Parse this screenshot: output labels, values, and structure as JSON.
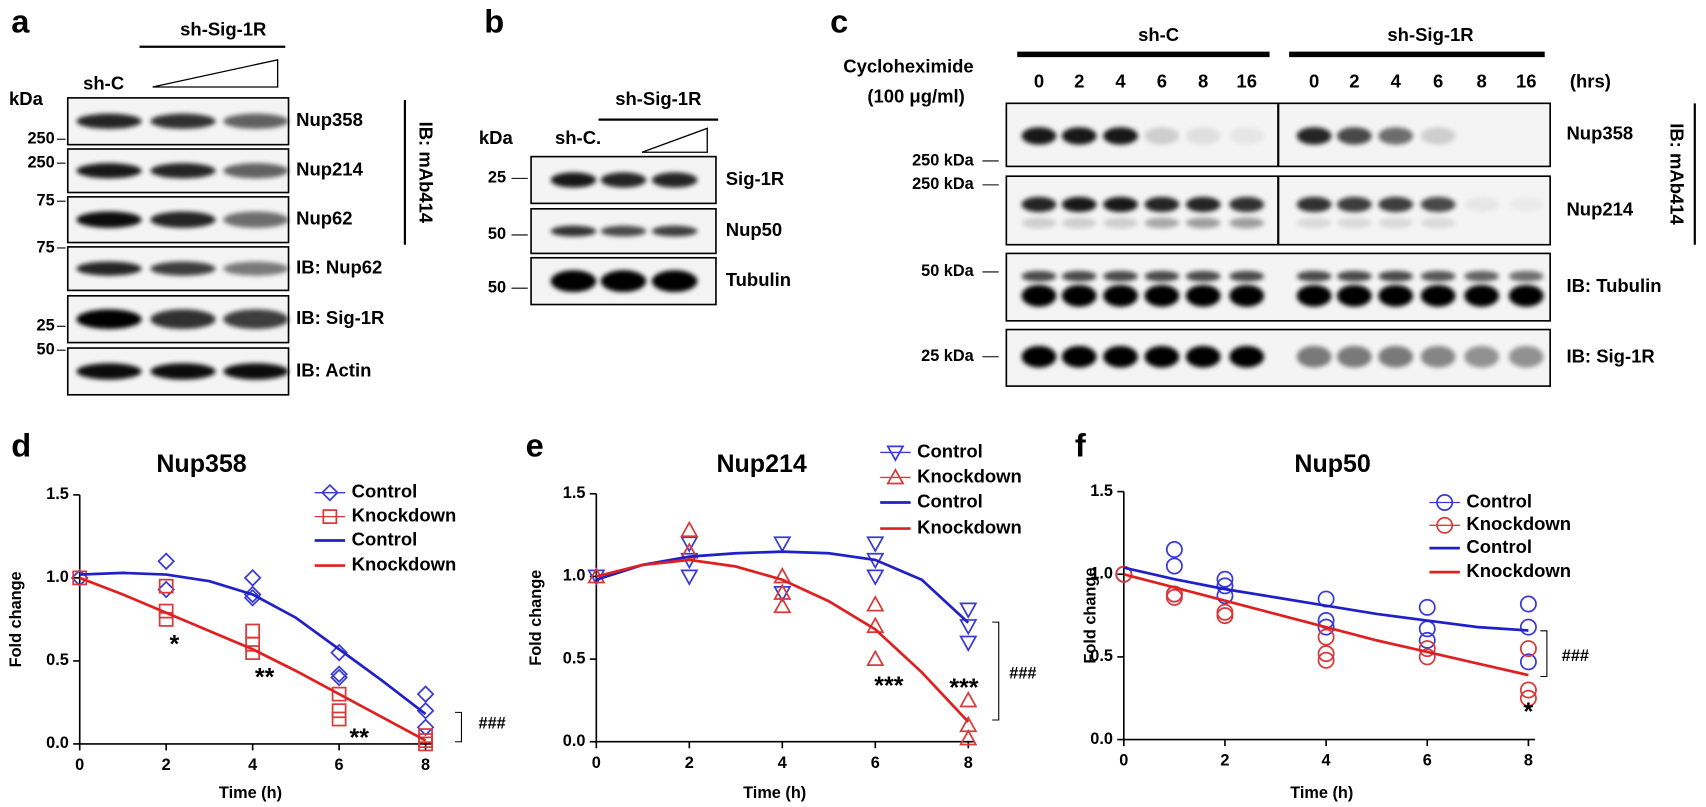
{
  "blots": [
    {
      "panel": "a",
      "header": "sh-Sig-1R",
      "kda": "kDa",
      "lanes": [
        "sh-C"
      ],
      "rows": [
        "Nup358",
        "Nup214",
        "Nup62",
        "IB: Nup62",
        "IB: Sig-1R",
        "IB: Actin"
      ],
      "markers": [
        "250",
        "250",
        "75",
        "75",
        "25",
        "50"
      ],
      "side": "IB: mAb414"
    },
    {
      "panel": "b",
      "header": "sh-Sig-1R",
      "kda": "kDa",
      "lanes": [
        "sh-C."
      ],
      "rows": [
        "Sig-1R",
        "Nup50",
        "Tubulin"
      ],
      "markers": [
        "25",
        "50",
        "50"
      ]
    },
    {
      "panel": "c",
      "groups": [
        "sh-C",
        "sh-Sig-1R"
      ],
      "treatment": [
        "Cycloheximide",
        "(100 μg/ml)"
      ],
      "times": [
        0,
        2,
        4,
        6,
        8,
        16
      ],
      "unit": "(hrs)",
      "rows": [
        "Nup358",
        "Nup214",
        "IB: Tubulin",
        "IB: Sig-1R"
      ],
      "markers": [
        "250 kDa",
        "250 kDa",
        "50 kDa",
        "25 kDa"
      ],
      "side": "IB: mAb414"
    }
  ],
  "chart_data": [
    {
      "type": "scatter",
      "panel": "d",
      "title": "Nup358",
      "xlabel": "Time (h)",
      "ylabel": "Fold change",
      "xlim": [
        0,
        8
      ],
      "ylim": [
        0,
        1.5
      ],
      "xticks": [
        0,
        2,
        4,
        6,
        8
      ],
      "yticks": [
        {
          "value": 0,
          "label": "0.0"
        },
        0.5,
        {
          "value": 1,
          "label": "1.0"
        },
        1.5
      ],
      "series": [
        {
          "name": "Control",
          "color": "#3a3ad8",
          "marker": "diamond",
          "x": [
            0,
            2,
            2,
            4,
            4,
            4,
            6,
            6,
            6,
            8,
            8,
            8
          ],
          "values": [
            1.0,
            1.1,
            0.93,
            1.0,
            0.9,
            0.88,
            0.55,
            0.42,
            0.4,
            0.3,
            0.2,
            0.1
          ]
        },
        {
          "name": "Knockdown",
          "color": "#d83a3a",
          "marker": "square",
          "x": [
            0,
            2,
            2,
            2,
            4,
            4,
            4,
            6,
            6,
            6,
            8,
            8,
            8
          ],
          "values": [
            1.0,
            0.95,
            0.8,
            0.75,
            0.68,
            0.6,
            0.55,
            0.3,
            0.2,
            0.15,
            0.05,
            0.02,
            0.0
          ]
        },
        {
          "name": "Control",
          "color": "#2020c8",
          "marker": "none",
          "x": [
            0,
            1,
            2,
            3,
            4,
            5,
            6,
            7,
            8
          ],
          "values": [
            1.02,
            1.03,
            1.02,
            0.98,
            0.9,
            0.76,
            0.57,
            0.38,
            0.18
          ]
        },
        {
          "name": "Knockdown",
          "color": "#e02020",
          "marker": "none",
          "x": [
            0,
            1,
            2,
            3,
            4,
            5,
            6,
            7,
            8
          ],
          "values": [
            1.0,
            0.9,
            0.79,
            0.68,
            0.57,
            0.44,
            0.3,
            0.16,
            0.02
          ]
        }
      ],
      "annotations": [
        "*",
        "**",
        "**",
        "###"
      ]
    },
    {
      "type": "scatter",
      "panel": "e",
      "title": "Nup214",
      "xlabel": "Time (h)",
      "ylabel": "Fold change",
      "xlim": [
        0,
        8
      ],
      "ylim": [
        0,
        1.5
      ],
      "xticks": [
        0,
        2,
        4,
        6,
        8
      ],
      "yticks": [
        {
          "value": 0,
          "label": "0.0"
        },
        0.5,
        {
          "value": 1,
          "label": "1.0"
        },
        1.5
      ],
      "series": [
        {
          "name": "Control",
          "color": "#3a3ad8",
          "marker": "triangle-down",
          "x": [
            0,
            2,
            2,
            2,
            4,
            4,
            6,
            6,
            6,
            8,
            8,
            8
          ],
          "values": [
            1.0,
            1.2,
            1.1,
            1.0,
            1.2,
            0.9,
            1.2,
            1.1,
            1.0,
            0.8,
            0.7,
            0.6
          ]
        },
        {
          "name": "Knockdown",
          "color": "#d83a3a",
          "marker": "triangle-up",
          "x": [
            0,
            2,
            2,
            4,
            4,
            4,
            6,
            6,
            6,
            8,
            8,
            8
          ],
          "values": [
            1.0,
            1.28,
            1.15,
            1.0,
            0.9,
            0.82,
            0.83,
            0.7,
            0.5,
            0.25,
            0.1,
            0.02
          ]
        },
        {
          "name": "Control",
          "color": "#2020c8",
          "marker": "none",
          "x": [
            0,
            1,
            2,
            3,
            4,
            5,
            6,
            7,
            8
          ],
          "values": [
            0.98,
            1.07,
            1.12,
            1.14,
            1.15,
            1.14,
            1.1,
            0.98,
            0.72
          ]
        },
        {
          "name": "Knockdown",
          "color": "#e02020",
          "marker": "none",
          "x": [
            0,
            1,
            2,
            3,
            4,
            5,
            6,
            7,
            8
          ],
          "values": [
            1.0,
            1.07,
            1.1,
            1.06,
            0.98,
            0.85,
            0.68,
            0.42,
            0.12
          ]
        }
      ],
      "annotations": [
        "***",
        "***",
        "###"
      ]
    },
    {
      "type": "scatter",
      "panel": "f",
      "title": "Nup50",
      "xlabel": "Time (h)",
      "ylabel": "Fold change",
      "xlim": [
        0,
        8
      ],
      "ylim": [
        0,
        1.5
      ],
      "xticks": [
        0,
        2,
        4,
        6,
        8
      ],
      "yticks": [
        {
          "value": 0,
          "label": "0.0"
        },
        0.5,
        {
          "value": 1,
          "label": "1.0"
        },
        1.5
      ],
      "series": [
        {
          "name": "Control",
          "color": "#3a3ad8",
          "marker": "circle",
          "x": [
            0,
            1,
            1,
            1,
            2,
            2,
            2,
            4,
            4,
            4,
            6,
            6,
            6,
            8,
            8,
            8
          ],
          "values": [
            1.0,
            1.15,
            1.05,
            0.88,
            0.97,
            0.93,
            0.87,
            0.85,
            0.72,
            0.68,
            0.8,
            0.67,
            0.6,
            0.82,
            0.68,
            0.47
          ]
        },
        {
          "name": "Knockdown",
          "color": "#d83a3a",
          "marker": "circle",
          "x": [
            0,
            1,
            1,
            2,
            2,
            4,
            4,
            4,
            6,
            6,
            8,
            8,
            8
          ],
          "values": [
            1.0,
            0.88,
            0.86,
            0.77,
            0.75,
            0.62,
            0.52,
            0.48,
            0.55,
            0.5,
            0.55,
            0.3,
            0.25
          ]
        },
        {
          "name": "Control",
          "color": "#2020c8",
          "marker": "none",
          "x": [
            0,
            1,
            2,
            3,
            4,
            5,
            6,
            7,
            8
          ],
          "values": [
            1.04,
            0.97,
            0.91,
            0.86,
            0.81,
            0.76,
            0.72,
            0.68,
            0.66
          ]
        },
        {
          "name": "Knockdown",
          "color": "#e02020",
          "marker": "none",
          "x": [
            0,
            1,
            2,
            3,
            4,
            5,
            6,
            7,
            8
          ],
          "values": [
            1.0,
            0.92,
            0.84,
            0.76,
            0.68,
            0.6,
            0.53,
            0.46,
            0.39
          ]
        }
      ],
      "annotations": [
        "*",
        "###"
      ]
    }
  ]
}
